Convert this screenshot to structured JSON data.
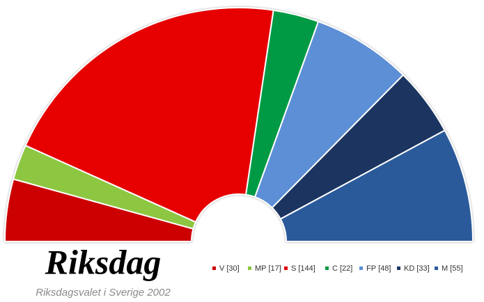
{
  "chart_data": {
    "type": "semicircle",
    "title": "Riksdag",
    "subtitle": "Riksdagsvalet i Sverige 2002",
    "categories": [
      "V",
      "MP",
      "S",
      "C",
      "FP",
      "KD",
      "M"
    ],
    "values": [
      30,
      17,
      144,
      22,
      48,
      33,
      55
    ],
    "value_labels": [
      "[30]",
      "[17]",
      "[144]",
      "[22]",
      "[48]",
      "[33]",
      "[55]"
    ],
    "colors": [
      "#cc0000",
      "#8dc63f",
      "#e60000",
      "#009a44",
      "#5b8fd6",
      "#1a3560",
      "#2a5a9a"
    ]
  }
}
